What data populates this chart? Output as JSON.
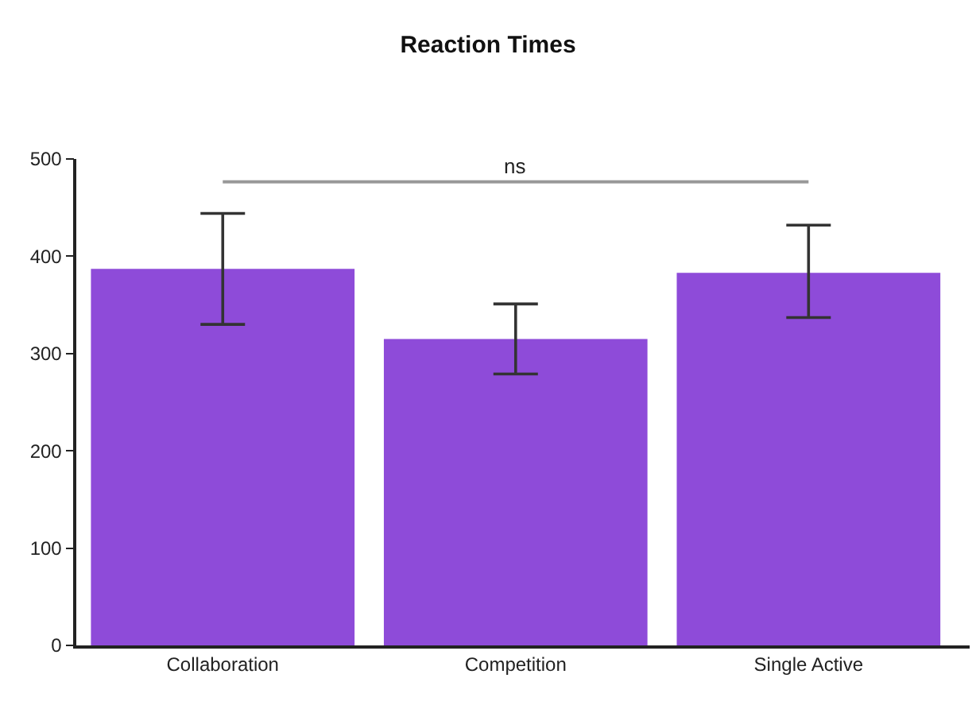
{
  "chart_data": {
    "type": "bar",
    "title": "Reaction Times",
    "categories": [
      "Collaboration",
      "Competition",
      "Single Active"
    ],
    "values": [
      387,
      315,
      383
    ],
    "errors": [
      [
        330,
        444
      ],
      [
        279,
        351
      ],
      [
        337,
        432
      ]
    ],
    "color": "#8e4bd9",
    "ylim": [
      0,
      500
    ],
    "yticks": [
      0,
      100,
      200,
      300,
      400,
      500
    ],
    "annotations": [
      "ns"
    ]
  }
}
